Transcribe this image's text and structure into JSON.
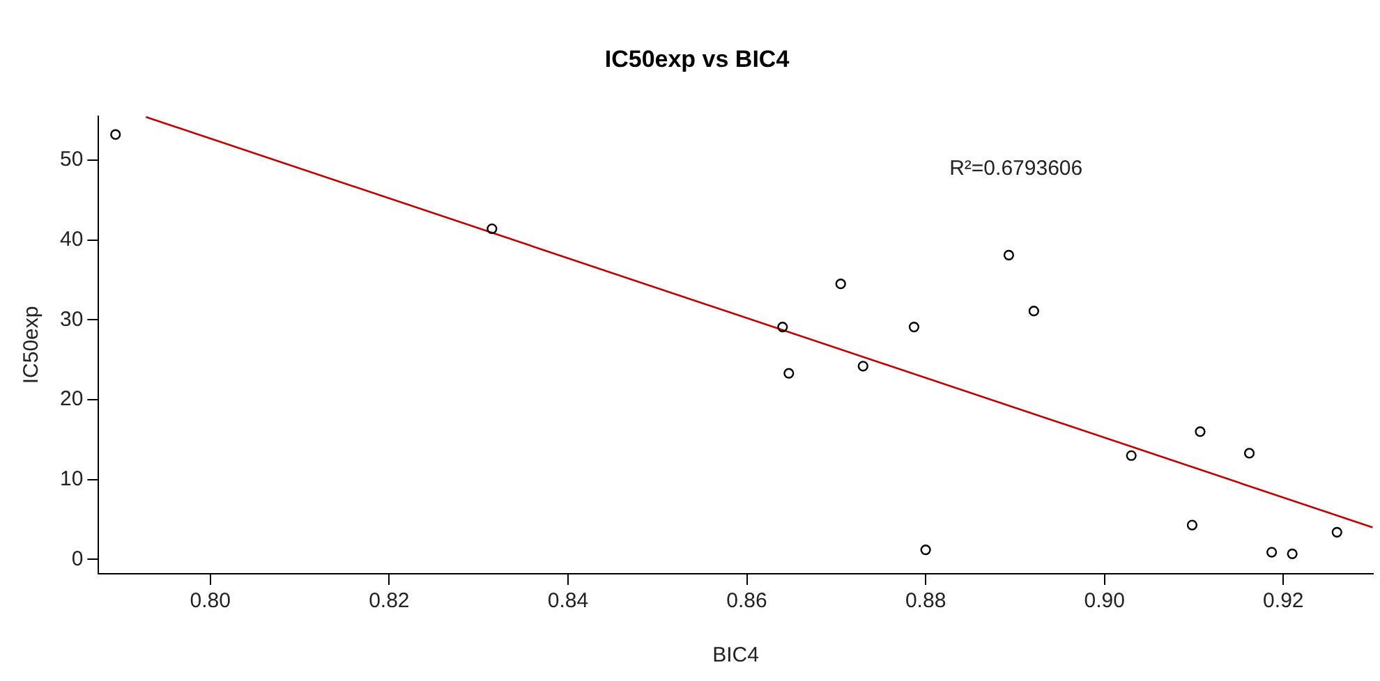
{
  "chart_data": {
    "type": "scatter",
    "title": "IC50exp vs BIC4",
    "xlabel": "BIC4",
    "ylabel": "IC50exp",
    "xlim": [
      0.7875,
      0.93
    ],
    "xticks": [
      {
        "value": 0.8,
        "label": "0.80"
      },
      0.82,
      0.84,
      0.86,
      0.88,
      {
        "value": 0.9,
        "label": "0.90"
      },
      0.92
    ],
    "ylim": [
      -1.8,
      55.5
    ],
    "yticks": [
      0,
      10,
      20,
      30,
      40,
      50
    ],
    "grid": false,
    "legend": false,
    "marker": "circle",
    "annotations": [
      "R²=0.6793606"
    ],
    "series": [
      {
        "color": "#000000",
        "x": [
          0.7894,
          0.8315,
          0.864,
          0.8647,
          0.8705,
          0.873,
          0.8787,
          0.88,
          0.8893,
          0.8921,
          0.903,
          0.9098,
          0.9107,
          0.9162,
          0.9187,
          0.921,
          0.926
        ],
        "values": [
          53.2,
          41.4,
          29.1,
          23.3,
          34.5,
          24.2,
          29.1,
          1.2,
          38.1,
          31.1,
          13.0,
          4.3,
          16.0,
          13.3,
          0.9,
          0.7,
          3.4
        ]
      },
      {
        "type": "line",
        "color": "#c00000",
        "marker": "none",
        "line_style": "solid",
        "x": [
          0.7928,
          0.93
        ],
        "values": [
          55.4,
          4.0
        ]
      }
    ]
  }
}
